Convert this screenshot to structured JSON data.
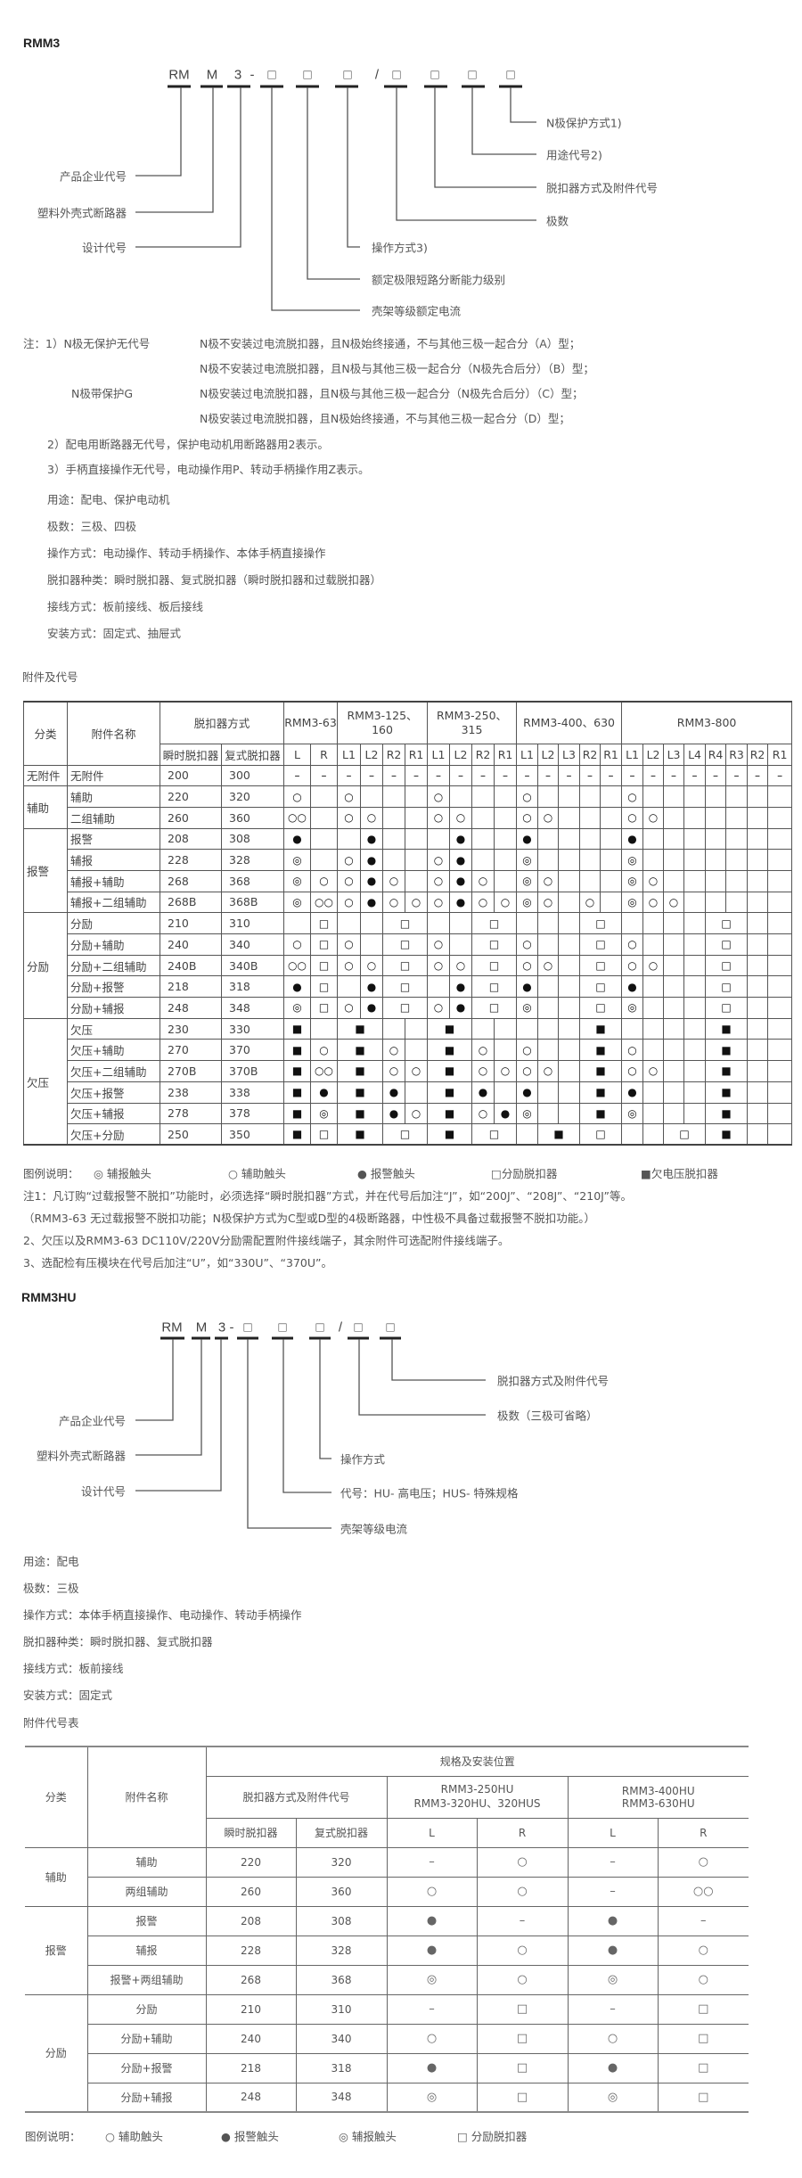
{
  "symbols": {
    "o": "○",
    "oo": "○○",
    "b": "●",
    "d": "◎",
    "s": "□",
    "S": "■",
    "-": "–",
    "<": ""
  },
  "rmm3": {
    "title": "RMM3",
    "codes": [
      "RM",
      "M",
      "3",
      "-",
      "□",
      "□",
      "□",
      "/",
      "□",
      "□",
      "□",
      "□"
    ],
    "right_labels": [
      "N极保护方式1)",
      "用途代号2)",
      "脱扣器方式及附件代号",
      "极数"
    ],
    "left_labels": [
      "产品企业代号",
      "塑料外壳式断路器",
      "设计代号"
    ],
    "lower_labels": [
      "操作方式3)",
      "额定极限短路分断能力级别",
      "壳架等级额定电流"
    ],
    "notes": {
      "n1_prefix": "注：1）N极无保护无代号",
      "n1a": "N极不安装过电流脱扣器，且N极始终接通，不与其他三极一起合分（A）型；",
      "n1b": "N极不安装过电流脱扣器，且N极与其他三极一起合分（N极先合后分）（B）型；",
      "n1_g": "N极带保护G",
      "n1c": "N极安装过电流脱扣器，且N极与其他三极一起合分（N极先合后分）（C）型；",
      "n1d": "N极安装过电流脱扣器，且N极始终接通，不与其他三极一起合分（D）型；",
      "n2": "2）配电用断路器无代号，保护电动机用断路器用2表示。",
      "n3": "3）手柄直接操作无代号，电动操作用P、转动手柄操作用Z表示。"
    },
    "specs": [
      "用途：配电、保护电动机",
      "极数：三极、四极",
      "操作方式：电动操作、转动手柄操作、本体手柄直接操作",
      "脱扣器种类：瞬时脱扣器、复式脱扣器（瞬时脱扣器和过载脱扣器）",
      "接线方式：板前接线、板后接线",
      "安装方式：固定式、抽屉式"
    ],
    "table_title": "附件及代号",
    "table": {
      "h_category": "分类",
      "h_name": "附件名称",
      "h_trip": "脱扣器方式",
      "h_inst": "瞬时脱扣器",
      "h_comp": "复式脱扣器",
      "models": [
        {
          "name": "RMM3-63",
          "cols": [
            "L",
            "R"
          ]
        },
        {
          "name": "RMM3-125、160",
          "cols": [
            "L1",
            "L2",
            "R2",
            "R1"
          ]
        },
        {
          "name": "RMM3-250、315",
          "cols": [
            "L1",
            "L2",
            "R2",
            "R1"
          ]
        },
        {
          "name": "RMM3-400、630",
          "cols": [
            "L1",
            "L2",
            "L3",
            "R2",
            "R1"
          ]
        },
        {
          "name": "RMM3-800",
          "cols": [
            "L1",
            "L2",
            "L3",
            "L4",
            "R4",
            "R3",
            "R2",
            "R1"
          ]
        }
      ],
      "groups": [
        {
          "category": "无附件",
          "rows": [
            {
              "name": "无附件",
              "inst": "200",
              "comp": "300",
              "marks": [
                "-",
                "-",
                "-",
                "-",
                "-",
                "-",
                "-",
                "-",
                "-",
                "-",
                "-",
                "-",
                "-",
                "-",
                "-",
                "-",
                "-",
                "-",
                "-",
                "-",
                "-",
                "-",
                "-"
              ]
            }
          ]
        },
        {
          "category": "辅助",
          "rows": [
            {
              "name": "辅助",
              "inst": "220",
              "comp": "320",
              "marks": [
                "o",
                "",
                "o",
                "",
                "",
                "",
                "o",
                "",
                "",
                "",
                "o",
                "",
                "",
                "",
                "",
                "o",
                "",
                "",
                "",
                "",
                "",
                "",
                ""
              ]
            },
            {
              "name": "二组辅助",
              "inst": "260",
              "comp": "360",
              "marks": [
                "oo",
                "",
                "o",
                "o",
                "",
                "",
                "o",
                "o",
                "",
                "",
                "o",
                "o",
                "",
                "",
                "",
                "o",
                "o",
                "",
                "",
                "",
                "",
                "",
                ""
              ]
            }
          ]
        },
        {
          "category": "报警",
          "rows": [
            {
              "name": "报警",
              "inst": "208",
              "comp": "308",
              "marks": [
                "b",
                "",
                "",
                "b",
                "",
                "",
                "",
                "b",
                "",
                "",
                "b",
                "",
                "",
                "",
                "",
                "b",
                "",
                "",
                "",
                "",
                "",
                "",
                ""
              ]
            },
            {
              "name": "辅报",
              "inst": "228",
              "comp": "328",
              "marks": [
                "d",
                "",
                "o",
                "b",
                "",
                "",
                "o",
                "b",
                "",
                "",
                "d",
                "",
                "",
                "",
                "",
                "d",
                "",
                "",
                "",
                "",
                "",
                "",
                ""
              ]
            },
            {
              "name": "辅报+辅助",
              "inst": "268",
              "comp": "368",
              "marks": [
                "d",
                "o",
                "o",
                "b",
                "o",
                "",
                "o",
                "b",
                "o",
                "",
                "d",
                "o",
                "",
                "",
                "",
                "d",
                "o",
                "",
                "",
                "",
                "",
                "",
                ""
              ]
            },
            {
              "name": "辅报+二组辅助",
              "inst": "268B",
              "comp": "368B",
              "marks": [
                "d",
                "oo",
                "o",
                "b",
                "o",
                "o",
                "o",
                "b",
                "o",
                "o",
                "d",
                "o",
                "",
                "o",
                "",
                "d",
                "o",
                "o",
                "",
                "",
                "",
                "",
                ""
              ]
            }
          ]
        },
        {
          "category": "分励",
          "rows": [
            {
              "name": "分励",
              "inst": "210",
              "comp": "310",
              "marks": [
                "",
                "s",
                "",
                "",
                "s",
                "<",
                "",
                "",
                "s",
                "<",
                "",
                "",
                "",
                "s",
                "<",
                "",
                "",
                "",
                "",
                "s",
                "<",
                "",
                ""
              ]
            },
            {
              "name": "分励+辅助",
              "inst": "240",
              "comp": "340",
              "marks": [
                "o",
                "s",
                "o",
                "",
                "s",
                "<",
                "o",
                "",
                "s",
                "<",
                "o",
                "",
                "",
                "s",
                "<",
                "o",
                "",
                "",
                "",
                "s",
                "<",
                "",
                ""
              ]
            },
            {
              "name": "分励+二组辅助",
              "inst": "240B",
              "comp": "340B",
              "marks": [
                "oo",
                "s",
                "o",
                "o",
                "s",
                "<",
                "o",
                "o",
                "s",
                "<",
                "o",
                "o",
                "",
                "s",
                "<",
                "o",
                "o",
                "",
                "",
                "s",
                "<",
                "",
                ""
              ]
            },
            {
              "name": "分励+报警",
              "inst": "218",
              "comp": "318",
              "marks": [
                "b",
                "s",
                "",
                "b",
                "s",
                "<",
                "",
                "b",
                "s",
                "<",
                "b",
                "",
                "",
                "s",
                "<",
                "b",
                "",
                "",
                "",
                "s",
                "<",
                "",
                ""
              ]
            },
            {
              "name": "分励+辅报",
              "inst": "248",
              "comp": "348",
              "marks": [
                "d",
                "s",
                "o",
                "b",
                "s",
                "<",
                "o",
                "b",
                "s",
                "<",
                "d",
                "",
                "",
                "s",
                "<",
                "d",
                "",
                "",
                "",
                "s",
                "<",
                "",
                ""
              ]
            }
          ]
        },
        {
          "category": "欠压",
          "rows": [
            {
              "name": "欠压",
              "inst": "230",
              "comp": "330",
              "marks": [
                "S",
                "",
                "S",
                "<",
                "",
                "",
                "S",
                "<",
                "",
                "",
                "",
                "",
                "",
                "S",
                "<",
                "",
                "",
                "",
                "",
                "S",
                "<",
                "",
                ""
              ]
            },
            {
              "name": "欠压+辅助",
              "inst": "270",
              "comp": "370",
              "marks": [
                "S",
                "o",
                "S",
                "<",
                "o",
                "",
                "S",
                "<",
                "o",
                "",
                "o",
                "",
                "",
                "S",
                "<",
                "o",
                "",
                "",
                "",
                "S",
                "<",
                "",
                ""
              ]
            },
            {
              "name": "欠压+二组辅助",
              "inst": "270B",
              "comp": "370B",
              "marks": [
                "S",
                "oo",
                "S",
                "<",
                "o",
                "o",
                "S",
                "<",
                "o",
                "o",
                "o",
                "o",
                "",
                "S",
                "<",
                "o",
                "o",
                "",
                "",
                "S",
                "<",
                "",
                ""
              ]
            },
            {
              "name": "欠压+报警",
              "inst": "238",
              "comp": "338",
              "marks": [
                "S",
                "b",
                "S",
                "<",
                "b",
                "",
                "S",
                "<",
                "b",
                "",
                "b",
                "",
                "",
                "S",
                "<",
                "b",
                "",
                "",
                "",
                "S",
                "<",
                "",
                ""
              ]
            },
            {
              "name": "欠压+辅报",
              "inst": "278",
              "comp": "378",
              "marks": [
                "S",
                "d",
                "S",
                "<",
                "b",
                "o",
                "S",
                "<",
                "o",
                "b",
                "d",
                "",
                "",
                "S",
                "<",
                "d",
                "",
                "",
                "",
                "S",
                "<",
                "",
                ""
              ]
            },
            {
              "name": "欠压+分励",
              "inst": "250",
              "comp": "350",
              "marks": [
                "S",
                "s",
                "S",
                "<",
                "s",
                "<",
                "S",
                "<",
                "s",
                "<",
                "",
                "S",
                "<",
                "s",
                "<",
                "",
                "",
                "s",
                "<",
                "S",
                "<",
                "",
                ""
              ]
            }
          ]
        }
      ]
    },
    "legend": {
      "title": "图例说明：",
      "items": [
        {
          "sym": "◎",
          "label": "辅报触头"
        },
        {
          "sym": "○",
          "label": "辅助触头"
        },
        {
          "sym": "●",
          "label": "报警触头"
        },
        {
          "sym": "□",
          "label": "分励脱扣器"
        },
        {
          "sym": "■",
          "label": "欠电压脱扣器"
        }
      ]
    },
    "footnotes": [
      "注1：凡订购“过载报警不脱扣”功能时，必须选择“瞬时脱扣器”方式，并在代号后加注“J”，如“200J”、“208J”、“210J”等。",
      "（RMM3-63 无过载报警不脱扣功能；N极保护方式为C型或D型的4极断路器，中性极不具备过载报警不脱扣功能。）",
      "2、欠压以及RMM3-63 DC110V/220V分励需配置附件接线端子，其余附件可选配附件接线端子。",
      "3、选配检有压模块在代号后加注“U”，如“330U”、“370U”。"
    ]
  },
  "rmm3hu": {
    "title": "RMM3HU",
    "codes": [
      "RM",
      "M",
      "3",
      "-",
      "□",
      "□",
      "□",
      "/",
      "□",
      "□"
    ],
    "right_labels": [
      "脱扣器方式及附件代号",
      "极数（三极可省略）"
    ],
    "left_labels": [
      "产品企业代号",
      "塑料外壳式断路器",
      "设计代号"
    ],
    "lower_labels": [
      "操作方式",
      "代号：HU- 高电压；HUS- 特殊规格",
      "壳架等级电流"
    ],
    "specs": [
      "用途：配电",
      "极数：三极",
      "操作方式：本体手柄直接操作、电动操作、转动手柄操作",
      "脱扣器种类：瞬时脱扣器、复式脱扣器",
      "接线方式：板前接线",
      "安装方式：固定式"
    ],
    "table_title": "附件代号表",
    "table": {
      "h_category": "分类",
      "h_name": "附件名称",
      "h_spec": "规格及安装位置",
      "h_trip": "脱扣器方式及附件代号",
      "h_model1": [
        "RMM3-250HU",
        "RMM3-320HU、320HUS"
      ],
      "h_model2": [
        "RMM3-400HU",
        "RMM3-630HU"
      ],
      "h_inst": "瞬时脱扣器",
      "h_comp": "复式脱扣器",
      "pos": [
        "L",
        "R",
        "L",
        "R"
      ],
      "groups": [
        {
          "category": "辅助",
          "rows": [
            {
              "name": "辅助",
              "inst": "220",
              "comp": "320",
              "marks": [
                "-",
                "o",
                "-",
                "o"
              ]
            },
            {
              "name": "两组辅助",
              "inst": "260",
              "comp": "360",
              "marks": [
                "o",
                "o",
                "-",
                "oo"
              ]
            }
          ]
        },
        {
          "category": "报警",
          "rows": [
            {
              "name": "报警",
              "inst": "208",
              "comp": "308",
              "marks": [
                "b",
                "-",
                "b",
                "-"
              ]
            },
            {
              "name": "辅报",
              "inst": "228",
              "comp": "328",
              "marks": [
                "b",
                "o",
                "b",
                "o"
              ]
            },
            {
              "name": "报警+两组辅助",
              "inst": "268",
              "comp": "368",
              "marks": [
                "d",
                "o",
                "d",
                "o"
              ]
            }
          ]
        },
        {
          "category": "分励",
          "rows": [
            {
              "name": "分励",
              "inst": "210",
              "comp": "310",
              "marks": [
                "-",
                "s",
                "-",
                "s"
              ]
            },
            {
              "name": "分励+辅助",
              "inst": "240",
              "comp": "340",
              "marks": [
                "o",
                "s",
                "o",
                "s"
              ]
            },
            {
              "name": "分励+报警",
              "inst": "218",
              "comp": "318",
              "marks": [
                "b",
                "s",
                "b",
                "s"
              ]
            },
            {
              "name": "分励+辅报",
              "inst": "248",
              "comp": "348",
              "marks": [
                "d",
                "s",
                "d",
                "s"
              ]
            }
          ]
        }
      ]
    },
    "legend": {
      "title": "图例说明：",
      "items": [
        {
          "sym": "○",
          "label": "辅助触头"
        },
        {
          "sym": "●",
          "label": "报警触头"
        },
        {
          "sym": "◎",
          "label": "辅报触头"
        },
        {
          "sym": "□",
          "label": "分励脱扣器"
        }
      ]
    }
  }
}
